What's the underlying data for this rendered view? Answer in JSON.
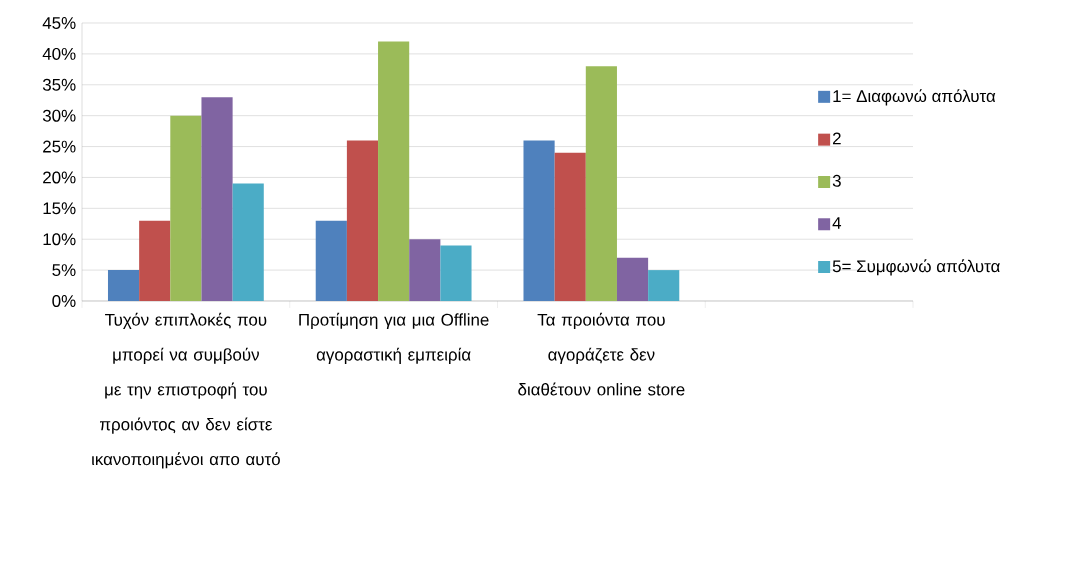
{
  "chart_data": {
    "type": "bar",
    "categories": [
      "Τυχόν επιπλοκές που μπορεί να συμβούν με την επιστροφή του προιόντος αν δεν είστε ικανοποιημένοι απο αυτό",
      "Προτίμηση για μια Offline αγοραστική εμπειρία",
      "Τα προιόντα που αγοράζετε δεν διαθέτουν online store",
      null
    ],
    "series": [
      {
        "name": "1= Διαφωνώ απόλυτα",
        "color": "#4f81bd",
        "values": [
          5,
          13,
          26,
          null
        ]
      },
      {
        "name": "2",
        "color": "#c0504d",
        "values": [
          13,
          26,
          24,
          null
        ]
      },
      {
        "name": "3",
        "color": "#9bbb59",
        "values": [
          30,
          42,
          38,
          null
        ]
      },
      {
        "name": "4",
        "color": "#8064a2",
        "values": [
          33,
          10,
          7,
          null
        ]
      },
      {
        "name": "5= Συμφωνώ απόλυτα",
        "color": "#4bacc6",
        "values": [
          19,
          9,
          5,
          null
        ]
      }
    ],
    "ylim": [
      0,
      45
    ],
    "yticks": [
      {
        "value": 0,
        "label": "0%"
      },
      {
        "value": 5,
        "label": "5%"
      },
      {
        "value": 10,
        "label": "10%"
      },
      {
        "value": 15,
        "label": "15%"
      },
      {
        "value": 20,
        "label": "20%"
      },
      {
        "value": 25,
        "label": "25%"
      },
      {
        "value": 30,
        "label": "30%"
      },
      {
        "value": 35,
        "label": "35%"
      },
      {
        "value": 40,
        "label": "40%"
      },
      {
        "value": 45,
        "label": "45%"
      }
    ],
    "grid": "y",
    "legend": "right"
  }
}
